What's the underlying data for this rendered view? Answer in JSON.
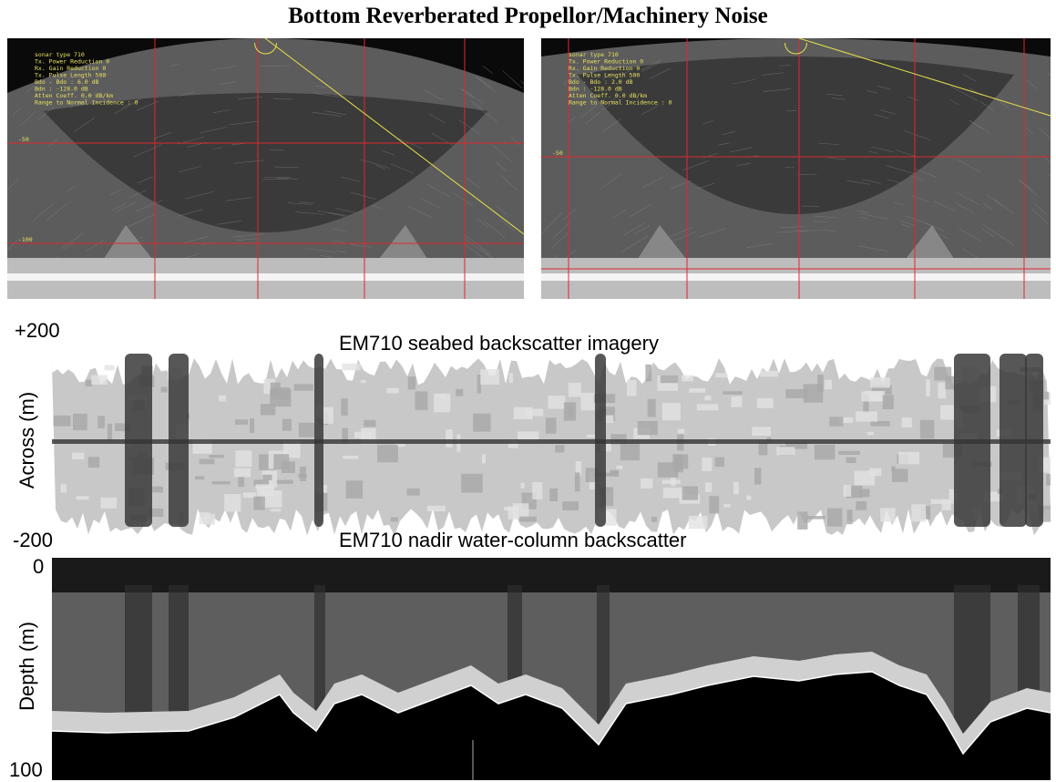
{
  "title": "Bottom Reverberated Propellor/Machinery Noise",
  "panels": [
    {
      "info": [
        "sonar type 710",
        "Tx. Power Reduction 0",
        "Rx. Gain Reduction 0",
        "Tx. Pulse Length 500",
        "Bdo - Bdo  : 6.0 dB",
        "Bdn        : -128.0 dB",
        "Atten Coeff. 0.0 dB/km",
        "Range to Normal Incidence : 0"
      ],
      "depth_labels": [
        "-50",
        "-100"
      ]
    },
    {
      "info": [
        "sonar type 710",
        "Tx. Power Reduction 0",
        "Rx. Gain Reduction 0",
        "Tx. Pulse Length 500",
        "Bdo - Bdo  : 2.0 dB",
        "Bdn        : -128.0 dB",
        "Atten Coeff. 0.0 dB/km",
        "Range to Normal Incidence : 0"
      ],
      "depth_labels": [
        "-50"
      ]
    }
  ],
  "seabed": {
    "title": "EM710 seabed backscatter imagery",
    "ylabel": "Across (m)",
    "top": "+200",
    "bottom": "-200"
  },
  "watercolumn": {
    "title": "EM710 nadir water-column backscatter",
    "ylabel": "Depth (m)",
    "top": "0",
    "bottom": "100"
  }
}
